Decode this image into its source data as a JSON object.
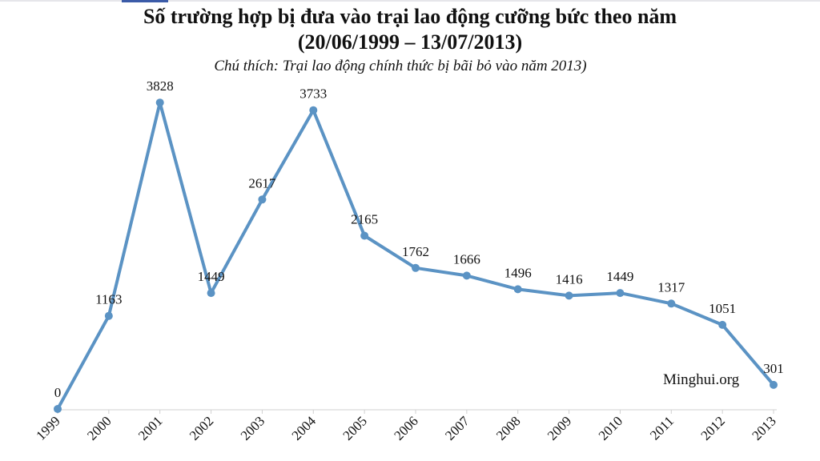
{
  "title_line1": "Số trường hợp bị đưa vào trại lao động cưỡng bức theo năm",
  "title_line2": "(20/06/1999 – 13/07/2013)",
  "subtitle": "Chú thích: Trại lao động chính thức bị bãi bỏ vào năm 2013)",
  "watermark": "Minghui.org",
  "colors": {
    "line": "#5b93c4",
    "text": "#111111"
  },
  "chart_data": {
    "type": "line",
    "title": "Số trường hợp bị đưa vào trại lao động cưỡng bức theo năm (20/06/1999 – 13/07/2013)",
    "subtitle": "Chú thích: Trại lao động chính thức bị bãi bỏ vào năm 2013)",
    "xlabel": "",
    "ylabel": "",
    "categories": [
      "1999",
      "2000",
      "2001",
      "2002",
      "2003",
      "2004",
      "2005",
      "2006",
      "2007",
      "2008",
      "2009",
      "2010",
      "2011",
      "2012",
      "2013"
    ],
    "series": [
      {
        "values": [
          0,
          1163,
          3828,
          1449,
          2617,
          3733,
          2165,
          1762,
          1666,
          1496,
          1416,
          1449,
          1317,
          1051,
          301
        ]
      }
    ],
    "data_labels": [
      "0",
      "1163",
      "3828",
      "1449",
      "2617",
      "3733",
      "2165",
      "1762",
      "1666",
      "1496",
      "1416",
      "1449",
      "1317",
      "1051",
      "301"
    ],
    "ylim": [
      0,
      4000
    ],
    "grid": false,
    "legend": "none",
    "x_tick_rotation": -45
  }
}
